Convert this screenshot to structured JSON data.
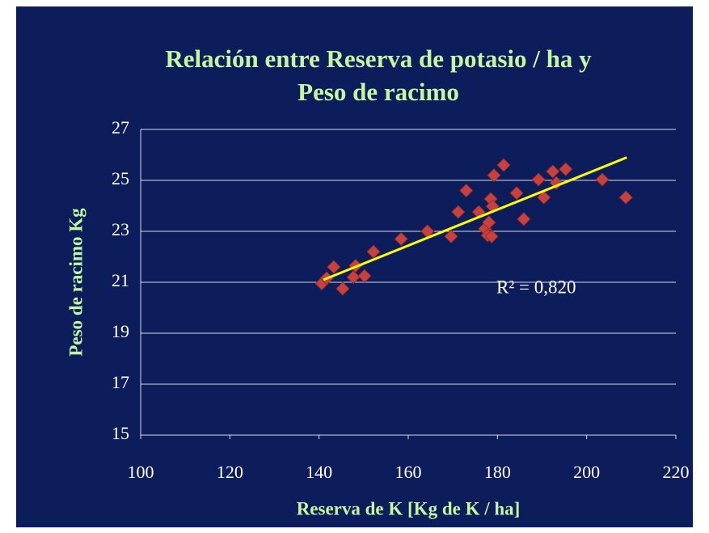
{
  "chart_data": {
    "type": "scatter",
    "title": [
      "Relación entre Reserva de potasio / ha y",
      "Peso de racimo"
    ],
    "x_label": "Reserva de K [Kg de K / ha]",
    "y_label": "Peso de racimo Kg",
    "annotation": "R² = 0,820",
    "xlim": [
      100,
      220
    ],
    "xticks": [
      100,
      120,
      140,
      160,
      180,
      200,
      220
    ],
    "ylim": [
      15,
      27
    ],
    "yticks": [
      15,
      17,
      19,
      21,
      23,
      25,
      27
    ],
    "grid": true,
    "background": "#0d1d5c",
    "series": [
      {
        "color": "#c8413f",
        "x": [
          140.6,
          141.7,
          143.3,
          145.3,
          147.7,
          148.2,
          150.2,
          152.2,
          158.4,
          164.3,
          169.6,
          171.2,
          173.0,
          175.8,
          177.2,
          177.8,
          178.1,
          178.5,
          178.7,
          178.9,
          179.2,
          181.4,
          184.3,
          185.9,
          189.2,
          190.4,
          192.4,
          193.2,
          195.3,
          203.5,
          208.8
        ],
        "values": [
          20.95,
          21.16,
          21.6,
          20.75,
          21.2,
          21.65,
          21.25,
          22.2,
          22.7,
          23.0,
          22.8,
          23.76,
          24.6,
          23.76,
          23.1,
          22.84,
          23.35,
          24.27,
          22.8,
          23.98,
          25.2,
          25.6,
          24.5,
          23.48,
          25.03,
          24.33,
          25.35,
          24.9,
          25.44,
          25.03,
          24.33
        ]
      }
    ],
    "trendline": {
      "color": "#ffff00",
      "x": [
        141,
        209
      ],
      "values": [
        21.1,
        25.9
      ]
    }
  }
}
